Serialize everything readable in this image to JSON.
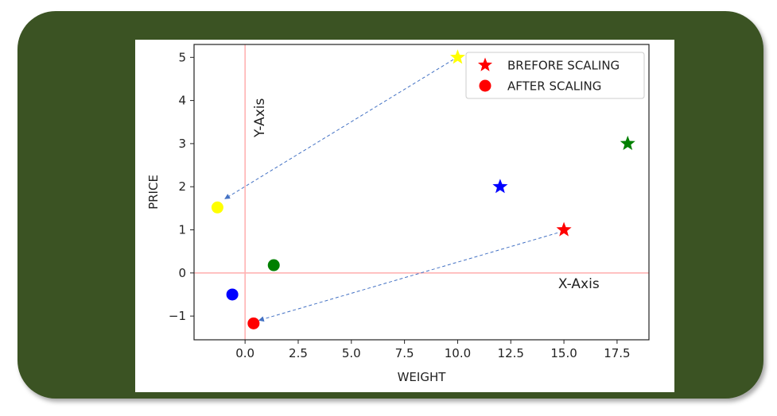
{
  "colors": {
    "frame": "#3b5323",
    "reference_lines": "#ffb3b3",
    "arrows": "#4472c4"
  },
  "chart_data": {
    "type": "scatter",
    "xlabel": "WEIGHT",
    "ylabel": "PRICE",
    "xlim": [
      -2.4,
      19
    ],
    "ylim": [
      -1.55,
      5.3
    ],
    "x_ticks": [
      "0.0",
      "2.5",
      "5.0",
      "7.5",
      "10.0",
      "12.5",
      "15.0",
      "17.5"
    ],
    "x_tick_values": [
      0,
      2.5,
      5,
      7.5,
      10,
      12.5,
      15,
      17.5
    ],
    "y_ticks": [
      "−1",
      "0",
      "1",
      "2",
      "3",
      "4",
      "5"
    ],
    "y_tick_values": [
      -1,
      0,
      1,
      2,
      3,
      4,
      5
    ],
    "grid": false,
    "legend_position": "top-right",
    "legend": [
      {
        "label": "BREFORE SCALING",
        "marker": "star",
        "color": "#ff0000"
      },
      {
        "label": "AFTER SCALING",
        "marker": "circle",
        "color": "#ff0000"
      }
    ],
    "series": [
      {
        "marker": "star",
        "points": [
          {
            "x": 10,
            "y": 5,
            "color": "#ffff00"
          },
          {
            "x": 18,
            "y": 3,
            "color": "#008000"
          },
          {
            "x": 12,
            "y": 2,
            "color": "#0000ff"
          },
          {
            "x": 15,
            "y": 1,
            "color": "#ff0000"
          }
        ]
      },
      {
        "marker": "circle",
        "points": [
          {
            "x": -1.3,
            "y": 1.52,
            "color": "#ffff00"
          },
          {
            "x": 1.35,
            "y": 0.18,
            "color": "#008000"
          },
          {
            "x": -0.6,
            "y": -0.5,
            "color": "#0000ff"
          },
          {
            "x": 0.4,
            "y": -1.17,
            "color": "#ff0000"
          }
        ]
      }
    ],
    "reference_lines": [
      {
        "axis": "x",
        "value": 0
      },
      {
        "axis": "y",
        "value": 0
      }
    ],
    "annotations": [
      {
        "text": "Y-Axis",
        "x": 0.9,
        "y": 3.6,
        "rotate": true
      },
      {
        "text": "X-Axis",
        "x": 15.7,
        "y": -0.35,
        "rotate": false
      }
    ],
    "arrows": [
      {
        "from": [
          9.8,
          4.95
        ],
        "to": [
          -0.95,
          1.72
        ]
      },
      {
        "from": [
          14.7,
          0.93
        ],
        "to": [
          0.65,
          -1.1
        ]
      }
    ]
  }
}
